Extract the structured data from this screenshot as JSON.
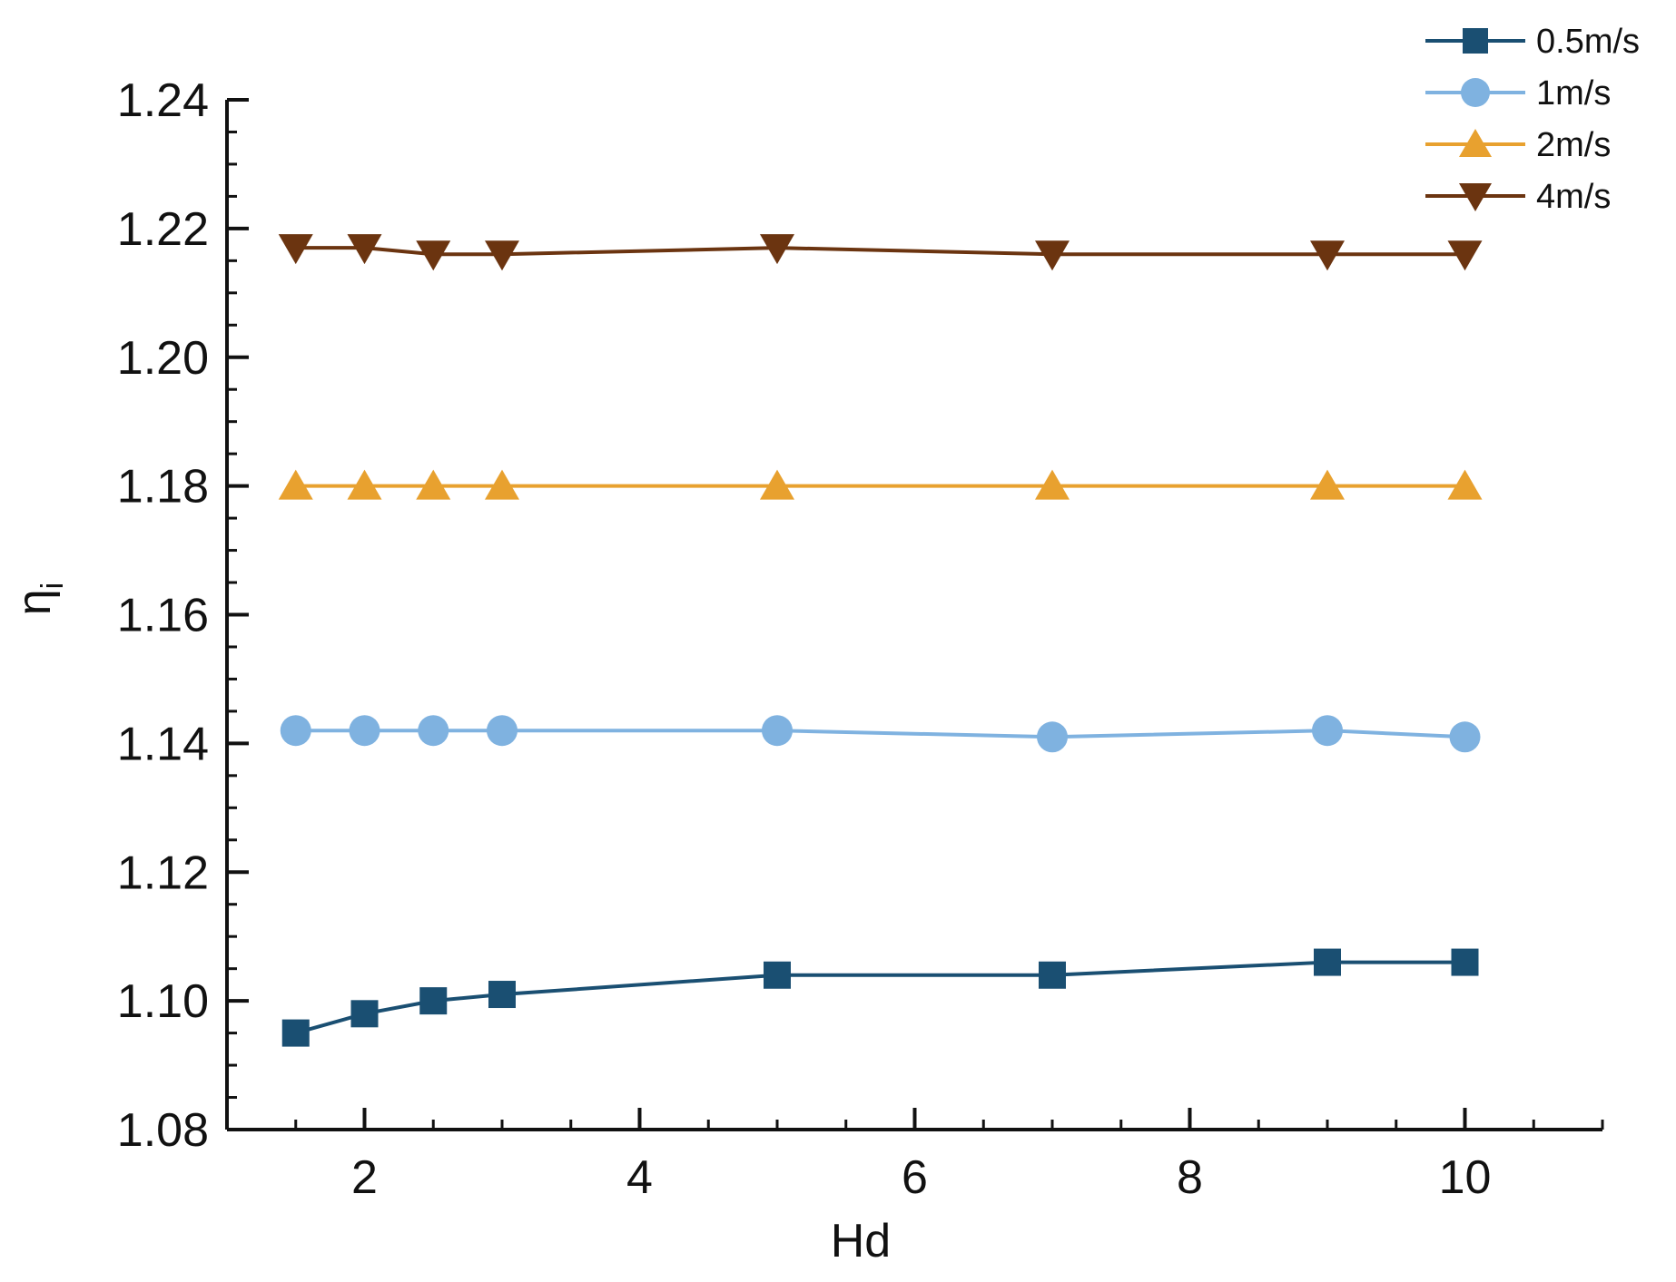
{
  "chart_data": {
    "type": "line",
    "title": "",
    "xlabel": "Hd",
    "ylabel": "η",
    "ylabel_subscript": "i",
    "xlim": [
      1,
      11
    ],
    "ylim": [
      1.08,
      1.24
    ],
    "x_major_ticks": [
      2,
      4,
      6,
      8,
      10
    ],
    "x_tick_labels": [
      "2",
      "4",
      "6",
      "8",
      "10"
    ],
    "x_minor_step": 0.5,
    "y_major_ticks": [
      1.08,
      1.1,
      1.12,
      1.14,
      1.16,
      1.18,
      1.2,
      1.22,
      1.24
    ],
    "y_tick_labels": [
      "1.08",
      "1.10",
      "1.12",
      "1.14",
      "1.16",
      "1.18",
      "1.20",
      "1.22",
      "1.24"
    ],
    "y_minor_step": 0.005,
    "grid": false,
    "legend_position": "top-right",
    "x": [
      1.5,
      2,
      2.5,
      3,
      5,
      7,
      9,
      10
    ],
    "series": [
      {
        "name": "0.5m/s",
        "color": "#1a4f72",
        "marker": "square",
        "values": [
          1.095,
          1.098,
          1.1,
          1.101,
          1.104,
          1.104,
          1.106,
          1.106
        ]
      },
      {
        "name": "1m/s",
        "color": "#7fb2e0",
        "marker": "circle",
        "values": [
          1.142,
          1.142,
          1.142,
          1.142,
          1.142,
          1.141,
          1.142,
          1.141
        ]
      },
      {
        "name": "2m/s",
        "color": "#e8a12f",
        "marker": "triangle-up",
        "values": [
          1.18,
          1.18,
          1.18,
          1.18,
          1.18,
          1.18,
          1.18,
          1.18
        ]
      },
      {
        "name": "4m/s",
        "color": "#6b3410",
        "marker": "triangle-down",
        "values": [
          1.217,
          1.217,
          1.216,
          1.216,
          1.217,
          1.216,
          1.216,
          1.216
        ]
      }
    ]
  }
}
